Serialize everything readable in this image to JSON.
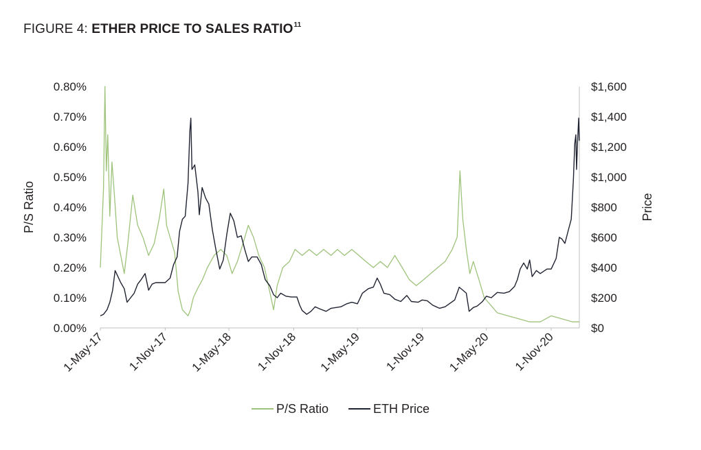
{
  "figure": {
    "prefix": "FIGURE 4: ",
    "title": "ETHER PRICE TO SALES RATIO",
    "footnote": "11"
  },
  "chart_data": {
    "type": "line",
    "left_axis": {
      "label": "P/S Ratio",
      "min": 0,
      "max": 0.8,
      "ticks": [
        0,
        0.1,
        0.2,
        0.3,
        0.4,
        0.5,
        0.6,
        0.7,
        0.8
      ],
      "tick_labels": [
        "0.00%",
        "0.10%",
        "0.20%",
        "0.30%",
        "0.40%",
        "0.50%",
        "0.60%",
        "0.70%",
        "0.80%"
      ]
    },
    "right_axis": {
      "label": "Price",
      "min": 0,
      "max": 1600,
      "ticks": [
        0,
        200,
        400,
        600,
        800,
        1000,
        1200,
        1400,
        1600
      ],
      "tick_labels": [
        "$0",
        "$200",
        "$400",
        "$600",
        "$800",
        "$1,000",
        "$1,200",
        "$1,400",
        "$1,600"
      ]
    },
    "x_axis": {
      "start": "2017-05-01",
      "end": "2021-01-20",
      "ticks": [
        "2017-05-01",
        "2017-11-01",
        "2018-05-01",
        "2018-11-01",
        "2019-05-01",
        "2019-11-01",
        "2020-05-01",
        "2020-11-01"
      ],
      "tick_labels": [
        "1-May-17",
        "1-Nov-17",
        "1-May-18",
        "1-Nov-18",
        "1-May-19",
        "1-Nov-19",
        "1-May-20",
        "1-Nov-20"
      ]
    },
    "grid": false,
    "legend_position": "bottom",
    "series": [
      {
        "name": "P/S Ratio",
        "axis": "left",
        "color": "#9dc37a",
        "points": [
          [
            "2017-05-01",
            0.2
          ],
          [
            "2017-05-10",
            0.46
          ],
          [
            "2017-05-14",
            0.8
          ],
          [
            "2017-05-18",
            0.52
          ],
          [
            "2017-05-22",
            0.64
          ],
          [
            "2017-05-28",
            0.37
          ],
          [
            "2017-06-03",
            0.55
          ],
          [
            "2017-06-10",
            0.44
          ],
          [
            "2017-06-18",
            0.3
          ],
          [
            "2017-06-28",
            0.24
          ],
          [
            "2017-07-08",
            0.18
          ],
          [
            "2017-07-18",
            0.28
          ],
          [
            "2017-08-01",
            0.44
          ],
          [
            "2017-08-15",
            0.34
          ],
          [
            "2017-08-30",
            0.3
          ],
          [
            "2017-09-15",
            0.24
          ],
          [
            "2017-10-01",
            0.28
          ],
          [
            "2017-10-15",
            0.36
          ],
          [
            "2017-10-28",
            0.46
          ],
          [
            "2017-11-05",
            0.34
          ],
          [
            "2017-11-15",
            0.3
          ],
          [
            "2017-11-28",
            0.25
          ],
          [
            "2017-12-08",
            0.12
          ],
          [
            "2017-12-20",
            0.06
          ],
          [
            "2018-01-05",
            0.04
          ],
          [
            "2018-01-12",
            0.06
          ],
          [
            "2018-01-20",
            0.1
          ],
          [
            "2018-02-01",
            0.13
          ],
          [
            "2018-02-15",
            0.16
          ],
          [
            "2018-03-01",
            0.2
          ],
          [
            "2018-03-20",
            0.24
          ],
          [
            "2018-04-08",
            0.26
          ],
          [
            "2018-04-25",
            0.24
          ],
          [
            "2018-05-10",
            0.18
          ],
          [
            "2018-05-25",
            0.22
          ],
          [
            "2018-06-10",
            0.28
          ],
          [
            "2018-06-25",
            0.34
          ],
          [
            "2018-07-10",
            0.3
          ],
          [
            "2018-07-25",
            0.24
          ],
          [
            "2018-08-10",
            0.2
          ],
          [
            "2018-08-25",
            0.12
          ],
          [
            "2018-09-05",
            0.06
          ],
          [
            "2018-09-15",
            0.14
          ],
          [
            "2018-10-01",
            0.2
          ],
          [
            "2018-10-20",
            0.22
          ],
          [
            "2018-11-05",
            0.26
          ],
          [
            "2018-11-25",
            0.24
          ],
          [
            "2018-12-15",
            0.26
          ],
          [
            "2019-01-05",
            0.24
          ],
          [
            "2019-01-25",
            0.26
          ],
          [
            "2019-02-15",
            0.24
          ],
          [
            "2019-03-05",
            0.26
          ],
          [
            "2019-03-25",
            0.24
          ],
          [
            "2019-04-15",
            0.26
          ],
          [
            "2019-05-05",
            0.24
          ],
          [
            "2019-05-25",
            0.22
          ],
          [
            "2019-06-15",
            0.2
          ],
          [
            "2019-07-05",
            0.22
          ],
          [
            "2019-07-25",
            0.2
          ],
          [
            "2019-08-15",
            0.24
          ],
          [
            "2019-09-05",
            0.2
          ],
          [
            "2019-09-25",
            0.16
          ],
          [
            "2019-10-15",
            0.14
          ],
          [
            "2019-11-05",
            0.16
          ],
          [
            "2019-11-25",
            0.18
          ],
          [
            "2019-12-15",
            0.2
          ],
          [
            "2020-01-05",
            0.22
          ],
          [
            "2020-01-25",
            0.26
          ],
          [
            "2020-02-08",
            0.3
          ],
          [
            "2020-02-16",
            0.52
          ],
          [
            "2020-02-24",
            0.36
          ],
          [
            "2020-03-05",
            0.26
          ],
          [
            "2020-03-15",
            0.18
          ],
          [
            "2020-03-25",
            0.22
          ],
          [
            "2020-04-10",
            0.16
          ],
          [
            "2020-04-25",
            0.1
          ],
          [
            "2020-05-10",
            0.08
          ],
          [
            "2020-06-01",
            0.05
          ],
          [
            "2020-07-01",
            0.04
          ],
          [
            "2020-08-01",
            0.03
          ],
          [
            "2020-09-01",
            0.02
          ],
          [
            "2020-10-01",
            0.02
          ],
          [
            "2020-11-01",
            0.04
          ],
          [
            "2020-12-01",
            0.03
          ],
          [
            "2021-01-01",
            0.02
          ],
          [
            "2021-01-20",
            0.02
          ]
        ]
      },
      {
        "name": "ETH Price",
        "axis": "right",
        "color": "#1f2230",
        "points": [
          [
            "2017-05-01",
            80
          ],
          [
            "2017-05-10",
            90
          ],
          [
            "2017-05-20",
            120
          ],
          [
            "2017-05-28",
            170
          ],
          [
            "2017-06-05",
            250
          ],
          [
            "2017-06-12",
            380
          ],
          [
            "2017-06-20",
            340
          ],
          [
            "2017-06-28",
            300
          ],
          [
            "2017-07-08",
            260
          ],
          [
            "2017-07-16",
            170
          ],
          [
            "2017-07-26",
            200
          ],
          [
            "2017-08-05",
            230
          ],
          [
            "2017-08-15",
            290
          ],
          [
            "2017-08-25",
            320
          ],
          [
            "2017-09-05",
            360
          ],
          [
            "2017-09-15",
            250
          ],
          [
            "2017-09-25",
            290
          ],
          [
            "2017-10-05",
            300
          ],
          [
            "2017-10-20",
            300
          ],
          [
            "2017-11-01",
            300
          ],
          [
            "2017-11-15",
            330
          ],
          [
            "2017-11-25",
            420
          ],
          [
            "2017-12-05",
            470
          ],
          [
            "2017-12-12",
            640
          ],
          [
            "2017-12-20",
            720
          ],
          [
            "2017-12-28",
            740
          ],
          [
            "2018-01-05",
            960
          ],
          [
            "2018-01-10",
            1300
          ],
          [
            "2018-01-13",
            1390
          ],
          [
            "2018-01-16",
            1050
          ],
          [
            "2018-01-24",
            1080
          ],
          [
            "2018-02-02",
            900
          ],
          [
            "2018-02-06",
            750
          ],
          [
            "2018-02-14",
            930
          ],
          [
            "2018-02-24",
            860
          ],
          [
            "2018-03-05",
            820
          ],
          [
            "2018-03-15",
            650
          ],
          [
            "2018-03-25",
            520
          ],
          [
            "2018-04-05",
            390
          ],
          [
            "2018-04-15",
            450
          ],
          [
            "2018-04-25",
            620
          ],
          [
            "2018-05-05",
            760
          ],
          [
            "2018-05-15",
            710
          ],
          [
            "2018-05-25",
            600
          ],
          [
            "2018-06-05",
            610
          ],
          [
            "2018-06-15",
            520
          ],
          [
            "2018-06-25",
            440
          ],
          [
            "2018-07-05",
            470
          ],
          [
            "2018-07-20",
            470
          ],
          [
            "2018-08-01",
            420
          ],
          [
            "2018-08-12",
            320
          ],
          [
            "2018-08-25",
            280
          ],
          [
            "2018-09-05",
            220
          ],
          [
            "2018-09-15",
            200
          ],
          [
            "2018-09-25",
            230
          ],
          [
            "2018-10-10",
            210
          ],
          [
            "2018-10-25",
            205
          ],
          [
            "2018-11-10",
            205
          ],
          [
            "2018-11-18",
            150
          ],
          [
            "2018-11-25",
            115
          ],
          [
            "2018-12-08",
            90
          ],
          [
            "2018-12-20",
            110
          ],
          [
            "2019-01-01",
            140
          ],
          [
            "2019-01-15",
            125
          ],
          [
            "2019-02-01",
            110
          ],
          [
            "2019-02-15",
            130
          ],
          [
            "2019-03-01",
            135
          ],
          [
            "2019-03-15",
            140
          ],
          [
            "2019-04-01",
            160
          ],
          [
            "2019-04-15",
            170
          ],
          [
            "2019-05-01",
            160
          ],
          [
            "2019-05-15",
            230
          ],
          [
            "2019-06-01",
            260
          ],
          [
            "2019-06-15",
            270
          ],
          [
            "2019-06-26",
            330
          ],
          [
            "2019-07-05",
            290
          ],
          [
            "2019-07-15",
            230
          ],
          [
            "2019-08-01",
            220
          ],
          [
            "2019-08-15",
            190
          ],
          [
            "2019-09-01",
            175
          ],
          [
            "2019-09-18",
            215
          ],
          [
            "2019-10-01",
            175
          ],
          [
            "2019-10-20",
            170
          ],
          [
            "2019-11-01",
            185
          ],
          [
            "2019-11-15",
            180
          ],
          [
            "2019-12-01",
            150
          ],
          [
            "2019-12-20",
            130
          ],
          [
            "2020-01-05",
            140
          ],
          [
            "2020-01-20",
            165
          ],
          [
            "2020-02-01",
            185
          ],
          [
            "2020-02-14",
            270
          ],
          [
            "2020-02-24",
            250
          ],
          [
            "2020-03-05",
            230
          ],
          [
            "2020-03-13",
            110
          ],
          [
            "2020-03-25",
            135
          ],
          [
            "2020-04-05",
            145
          ],
          [
            "2020-04-20",
            175
          ],
          [
            "2020-05-01",
            210
          ],
          [
            "2020-05-15",
            200
          ],
          [
            "2020-06-01",
            235
          ],
          [
            "2020-06-20",
            230
          ],
          [
            "2020-07-05",
            240
          ],
          [
            "2020-07-20",
            275
          ],
          [
            "2020-07-28",
            320
          ],
          [
            "2020-08-05",
            390
          ],
          [
            "2020-08-15",
            430
          ],
          [
            "2020-08-25",
            390
          ],
          [
            "2020-09-01",
            450
          ],
          [
            "2020-09-08",
            340
          ],
          [
            "2020-09-20",
            380
          ],
          [
            "2020-10-01",
            360
          ],
          [
            "2020-10-20",
            390
          ],
          [
            "2020-11-01",
            390
          ],
          [
            "2020-11-15",
            460
          ],
          [
            "2020-11-24",
            600
          ],
          [
            "2020-12-01",
            590
          ],
          [
            "2020-12-10",
            560
          ],
          [
            "2020-12-20",
            650
          ],
          [
            "2020-12-28",
            720
          ],
          [
            "2021-01-03",
            980
          ],
          [
            "2021-01-07",
            1220
          ],
          [
            "2021-01-10",
            1280
          ],
          [
            "2021-01-12",
            1050
          ],
          [
            "2021-01-15",
            1230
          ],
          [
            "2021-01-18",
            1390
          ],
          [
            "2021-01-20",
            1240
          ]
        ]
      }
    ]
  }
}
